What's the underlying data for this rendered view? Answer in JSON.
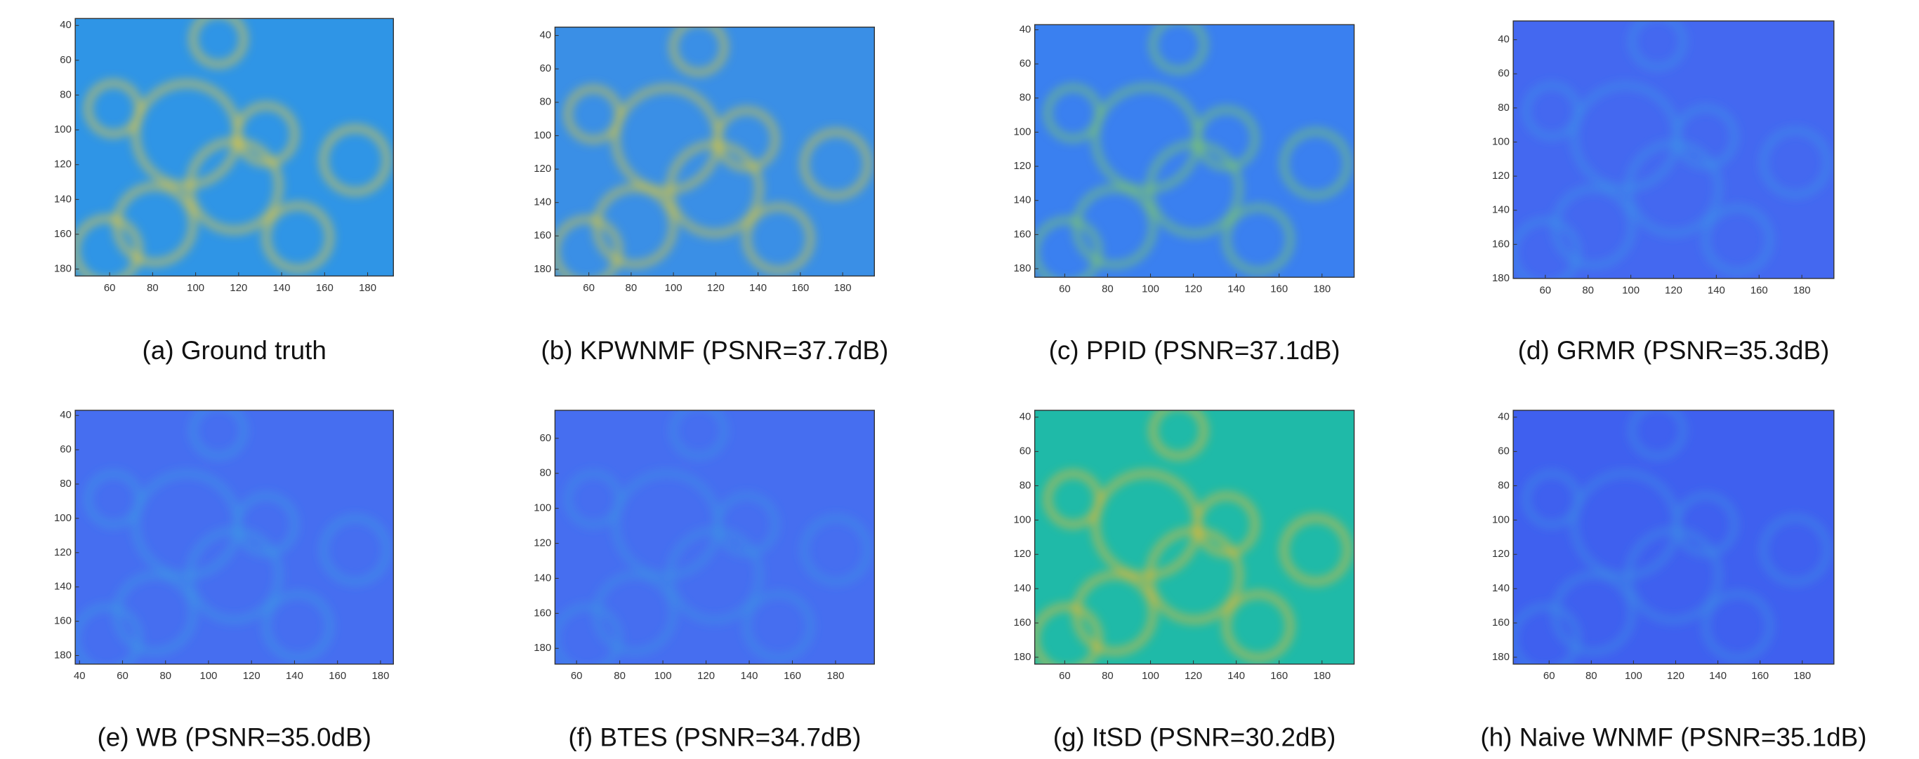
{
  "chart_data": [
    {
      "type": "image",
      "caption": "(a) Ground truth",
      "color": "#2f95e6",
      "accent": "#e9c93a",
      "xlim": [
        44,
        192
      ],
      "ylim": [
        36,
        184
      ],
      "y_reversed": true,
      "xticks": [
        60,
        80,
        100,
        120,
        140,
        160,
        180
      ],
      "yticks": [
        40,
        60,
        80,
        100,
        120,
        140,
        160,
        180
      ]
    },
    {
      "type": "image",
      "caption": "(b) KPWNMF (PSNR=37.7dB)",
      "color": "#3a8fe6",
      "accent": "#d8c73f",
      "xlim": [
        44,
        195
      ],
      "ylim": [
        35,
        184
      ],
      "y_reversed": true,
      "xticks": [
        60,
        80,
        100,
        120,
        140,
        160,
        180
      ],
      "yticks": [
        40,
        60,
        80,
        100,
        120,
        140,
        160,
        180
      ]
    },
    {
      "type": "image",
      "caption": "(c) PPID (PSNR=37.1dB)",
      "color": "#3a80f0",
      "accent": "#7fc86a",
      "xlim": [
        46,
        195
      ],
      "ylim": [
        37,
        185
      ],
      "y_reversed": true,
      "xticks": [
        60,
        80,
        100,
        120,
        140,
        160,
        180
      ],
      "yticks": [
        40,
        60,
        80,
        100,
        120,
        140,
        160,
        180
      ]
    },
    {
      "type": "image",
      "caption": "(d) GRMR (PSNR=35.3dB)",
      "color": "#4468f0",
      "accent": "#3f8fe8",
      "xlim": [
        45,
        195
      ],
      "ylim": [
        29,
        180
      ],
      "y_reversed": true,
      "xticks": [
        60,
        80,
        100,
        120,
        140,
        160,
        180
      ],
      "yticks": [
        40,
        60,
        80,
        100,
        120,
        140,
        160,
        180
      ]
    },
    {
      "type": "image",
      "caption": "(e) WB (PSNR=35.0dB)",
      "color": "#466ef0",
      "accent": "#3c95e6",
      "xlim": [
        38,
        186
      ],
      "ylim": [
        37,
        185
      ],
      "y_reversed": true,
      "xticks": [
        40,
        60,
        80,
        100,
        120,
        140,
        160,
        180
      ],
      "yticks": [
        40,
        60,
        80,
        100,
        120,
        140,
        160,
        180
      ]
    },
    {
      "type": "image",
      "caption": "(f) BTES (PSNR=34.7dB)",
      "color": "#466ef0",
      "accent": "#3c8fe6",
      "xlim": [
        50,
        198
      ],
      "ylim": [
        44,
        189
      ],
      "y_reversed": true,
      "xticks": [
        60,
        80,
        100,
        120,
        140,
        160,
        180
      ],
      "yticks": [
        60,
        80,
        100,
        120,
        140,
        160,
        180
      ]
    },
    {
      "type": "image",
      "caption": "(g) ItSD (PSNR=30.2dB)",
      "color": "#1fbaa8",
      "accent": "#e8b832",
      "xlim": [
        46,
        195
      ],
      "ylim": [
        36,
        184
      ],
      "y_reversed": true,
      "xticks": [
        60,
        80,
        100,
        120,
        140,
        160,
        180
      ],
      "yticks": [
        40,
        60,
        80,
        100,
        120,
        140,
        160,
        180
      ]
    },
    {
      "type": "image",
      "caption": "(h) Naive WNMF (PSNR=35.1dB)",
      "color": "#3f60ef",
      "accent": "#3d8ae6",
      "xlim": [
        43,
        195
      ],
      "ylim": [
        36,
        184
      ],
      "y_reversed": true,
      "xticks": [
        60,
        80,
        100,
        120,
        140,
        160,
        180
      ],
      "yticks": [
        40,
        60,
        80,
        100,
        120,
        140,
        160,
        180
      ]
    }
  ]
}
